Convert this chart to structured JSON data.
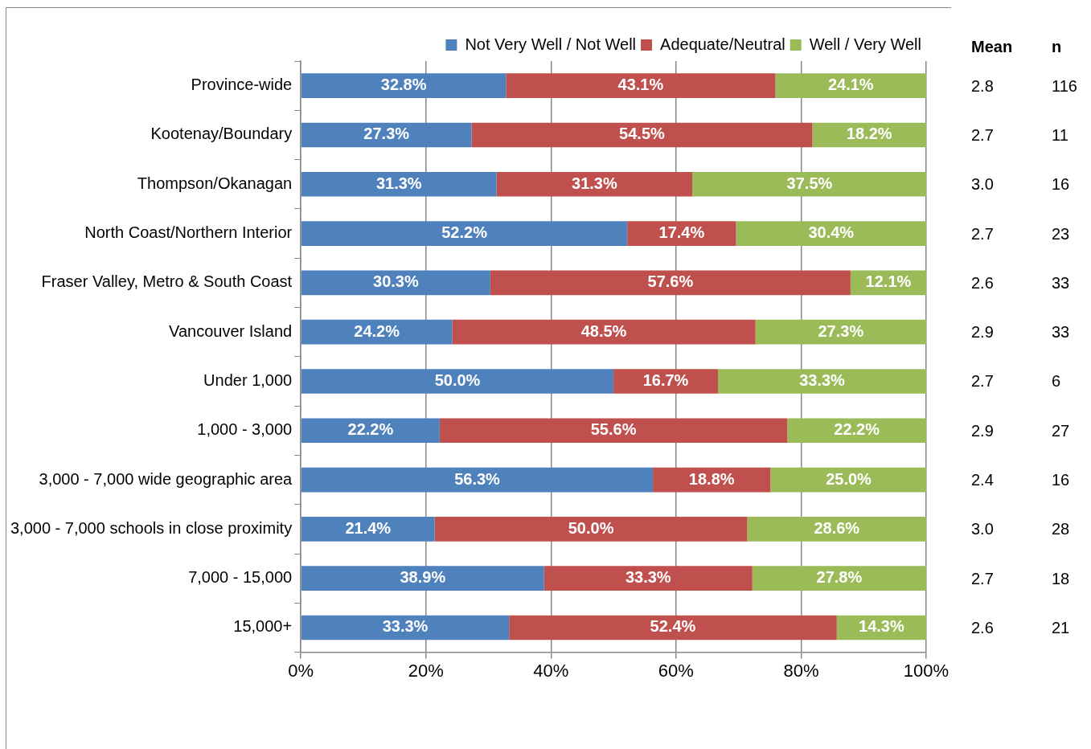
{
  "chart_data": {
    "type": "bar",
    "orientation": "horizontal",
    "stacked": true,
    "legend": "top",
    "grid": "x",
    "categories": [
      "Province-wide",
      "Kootenay/Boundary",
      "Thompson/Okanagan",
      "North Coast/Northern Interior",
      "Fraser Valley, Metro & South Coast",
      "Vancouver Island",
      "Under 1,000",
      "1,000 - 3,000",
      "3,000 - 7,000 wide geographic area",
      "3,000 - 7,000 schools in close proximity",
      "7,000 - 15,000",
      "15,000+"
    ],
    "xlim": [
      0,
      100
    ],
    "xticks": [
      {
        "value": 0,
        "label": "0%"
      },
      {
        "value": 20,
        "label": "20%"
      },
      {
        "value": 40,
        "label": "40%"
      },
      {
        "value": 60,
        "label": "60%"
      },
      {
        "value": 80,
        "label": "80%"
      },
      {
        "value": 100,
        "label": "100%"
      }
    ],
    "series": [
      {
        "name": "Not Very Well / Not Well",
        "color": "#4f81bd",
        "values": [
          32.8,
          27.3,
          31.3,
          52.2,
          30.3,
          24.2,
          50.0,
          22.2,
          56.3,
          21.4,
          38.9,
          33.3
        ],
        "value_labels": [
          "32.8%",
          "27.3%",
          "31.3%",
          "52.2%",
          "30.3%",
          "24.2%",
          "50.0%",
          "22.2%",
          "56.3%",
          "21.4%",
          "38.9%",
          "33.3%"
        ]
      },
      {
        "name": "Adequate/Neutral",
        "color": "#c0504d",
        "values": [
          43.1,
          54.5,
          31.3,
          17.4,
          57.6,
          48.5,
          16.7,
          55.6,
          18.8,
          50.0,
          33.3,
          52.4
        ],
        "value_labels": [
          "43.1%",
          "54.5%",
          "31.3%",
          "17.4%",
          "57.6%",
          "48.5%",
          "16.7%",
          "55.6%",
          "18.8%",
          "50.0%",
          "33.3%",
          "52.4%"
        ]
      },
      {
        "name": "Well / Very Well",
        "color": "#9bbb59",
        "values": [
          24.1,
          18.2,
          37.5,
          30.4,
          12.1,
          27.3,
          33.3,
          22.2,
          25.0,
          28.6,
          27.8,
          14.3
        ],
        "value_labels": [
          "24.1%",
          "18.2%",
          "37.5%",
          "30.4%",
          "12.1%",
          "27.3%",
          "33.3%",
          "22.2%",
          "25.0%",
          "28.6%",
          "27.8%",
          "14.3%"
        ]
      }
    ],
    "annotations": [
      "Mean",
      "n",
      "2.8",
      "116",
      "2.7",
      "11",
      "3.0",
      "16",
      "2.7",
      "23",
      "2.6",
      "33",
      "2.9",
      "33",
      "2.7",
      "6",
      "2.9",
      "27",
      "2.4",
      "16",
      "3.0",
      "28",
      "2.7",
      "18",
      "2.6",
      "21"
    ]
  }
}
